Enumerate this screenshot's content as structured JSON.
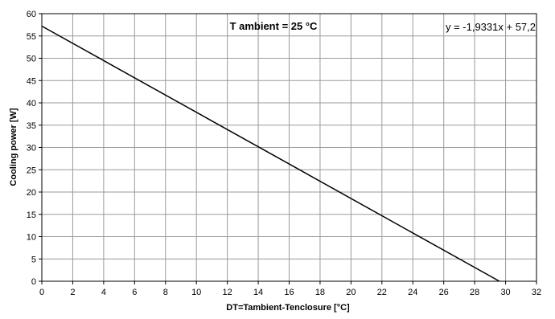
{
  "chart_data": {
    "type": "line",
    "title": "T ambient = 25 °C",
    "xlabel": "DT=Tambient-Tenclosure [°C]",
    "ylabel": "Cooling power [W]",
    "xlim": [
      0,
      32
    ],
    "ylim": [
      0,
      60
    ],
    "xticks": [
      "0",
      "2",
      "4",
      "6",
      "8",
      "10",
      "12",
      "14",
      "16",
      "18",
      "20",
      "22",
      "24",
      "26",
      "28",
      "30",
      "32"
    ],
    "yticks": [
      "0",
      "5",
      "10",
      "15",
      "20",
      "25",
      "30",
      "35",
      "40",
      "45",
      "50",
      "55",
      "60"
    ],
    "grid": true,
    "legend": "none",
    "annotation": "y = -1,9331x + 57,2",
    "series": [
      {
        "color": "#000000",
        "x": [
          0,
          29.6
        ],
        "y": [
          57.2,
          0
        ]
      }
    ]
  }
}
